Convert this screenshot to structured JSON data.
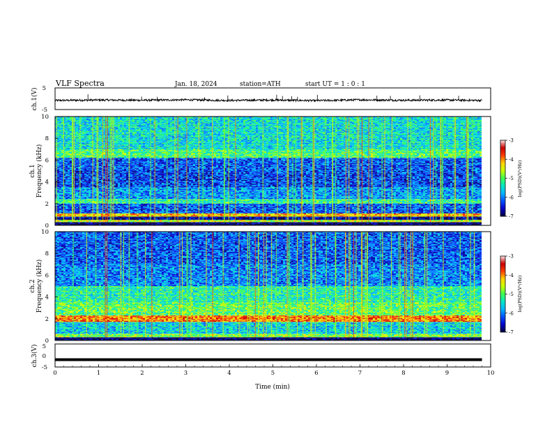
{
  "header": {
    "title": "VLF  Spectra",
    "date": "Jan.  18,  2024",
    "station": "station=ATH",
    "start_ut": "start  UT  =   1 : 0  : 1"
  },
  "colors": {
    "waveform": "#000000",
    "colormap": [
      "#000040",
      "#0000c8",
      "#0050ff",
      "#00b4ff",
      "#00e6c8",
      "#3cff50",
      "#c8ff00",
      "#ffd200",
      "#ff3c00",
      "#c80000",
      "#ffe6e6"
    ]
  },
  "chart_data": [
    {
      "type": "line",
      "name": "ch1-waveform",
      "ylabel": "ch.1(V)",
      "ylim": [
        -5,
        5
      ],
      "y_ticks": [
        "5",
        "-5"
      ],
      "xlim": [
        0,
        10
      ],
      "x_approx": [
        0,
        1,
        2,
        3,
        4,
        5,
        6,
        7,
        8,
        9,
        9.8
      ],
      "y_approx": [
        -0.8,
        -0.6,
        -0.7,
        -0.5,
        -0.8,
        -0.6,
        -0.9,
        -0.5,
        -0.7,
        -0.6,
        -0.8
      ]
    },
    {
      "type": "heatmap",
      "name": "ch1-spectrogram",
      "ylabel": "ch.1\nFrequency  (kHz)",
      "ylim": [
        0,
        10
      ],
      "y_ticks": [
        "0",
        "2",
        "4",
        "6",
        "8",
        "10"
      ],
      "xlim": [
        0,
        10
      ],
      "data_end_min": 9.8,
      "colorbar": {
        "label": "log(PSD)(V²/Hz)",
        "range": [
          -7,
          -3
        ],
        "ticks": [
          "-3",
          "-4",
          "-5",
          "-6",
          "-7"
        ]
      },
      "bands_khz": [
        {
          "from": 0.0,
          "to": 0.3,
          "level": -7.0
        },
        {
          "from": 0.3,
          "to": 0.5,
          "level": -4.6
        },
        {
          "from": 0.5,
          "to": 0.8,
          "level": -6.8
        },
        {
          "from": 0.8,
          "to": 1.1,
          "level": -4.2
        },
        {
          "from": 1.1,
          "to": 2.0,
          "level": -6.2
        },
        {
          "from": 2.0,
          "to": 2.4,
          "level": -5.2
        },
        {
          "from": 2.4,
          "to": 3.5,
          "level": -5.9
        },
        {
          "from": 3.5,
          "to": 5.0,
          "level": -6.3
        },
        {
          "from": 5.0,
          "to": 6.2,
          "level": -6.2
        },
        {
          "from": 6.2,
          "to": 7.0,
          "level": -5.1
        },
        {
          "from": 7.0,
          "to": 10.0,
          "level": -5.5
        }
      ]
    },
    {
      "type": "heatmap",
      "name": "ch2-spectrogram",
      "ylabel": "ch.2\nFrequency  (kHz)",
      "ylim": [
        0,
        10
      ],
      "y_ticks": [
        "0",
        "2",
        "4",
        "6",
        "8",
        "10"
      ],
      "xlim": [
        0,
        10
      ],
      "data_end_min": 9.8,
      "colorbar": {
        "label": "log(PSD)(V²/Hz)",
        "range": [
          -7,
          -3
        ],
        "ticks": [
          "-3",
          "-4",
          "-5",
          "-6",
          "-7"
        ]
      },
      "bands_khz": [
        {
          "from": 0.0,
          "to": 0.3,
          "level": -7.0
        },
        {
          "from": 0.3,
          "to": 0.6,
          "level": -4.8
        },
        {
          "from": 0.6,
          "to": 1.7,
          "level": -5.6
        },
        {
          "from": 1.7,
          "to": 2.3,
          "level": -3.9
        },
        {
          "from": 2.3,
          "to": 3.5,
          "level": -5.0
        },
        {
          "from": 3.5,
          "to": 5.0,
          "level": -5.3
        },
        {
          "from": 5.0,
          "to": 7.0,
          "level": -6.0
        },
        {
          "from": 7.0,
          "to": 10.0,
          "level": -6.2
        }
      ]
    },
    {
      "type": "line",
      "name": "ch3-waveform",
      "ylabel": "ch.3(V)",
      "ylim": [
        -5,
        5
      ],
      "y_ticks": [
        "5",
        "0",
        "-5"
      ],
      "xlim": [
        0,
        10
      ],
      "x": [
        0,
        9.8
      ],
      "y": [
        -1.8,
        -1.8
      ],
      "xlabel": "Time  (min)",
      "x_ticks": [
        "0",
        "1",
        "2",
        "3",
        "4",
        "5",
        "6",
        "7",
        "8",
        "9",
        "10"
      ]
    }
  ]
}
